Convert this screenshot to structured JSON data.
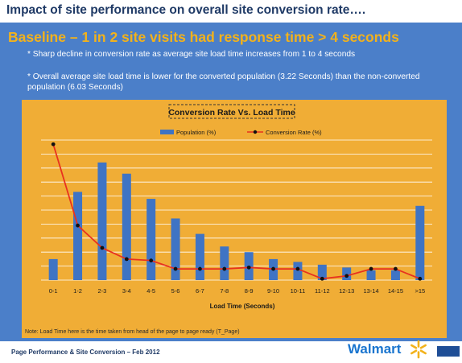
{
  "slide": {
    "title": "Impact of site performance on overall site conversion rate….",
    "headline": "Baseline – 1 in 2 site visits had response time > 4 seconds",
    "bullets": [
      "* Sharp decline in conversion rate as average site load time increases from 1 to 4 seconds",
      "* Overall average site load time is lower for the converted population (3.22 Seconds) than the non-converted population (6.03 Seconds)"
    ],
    "note": "Note: Load Time here is the time taken from head of the page to page ready (T_Page)",
    "footer": "Page Performance & Site Conversion – Feb 2012",
    "logo_text": "Walmart",
    "colors": {
      "panel": "#4b7fc9",
      "headline": "#f2b21c",
      "chart_bg": "#f0ad36",
      "bars": "#3f74c4",
      "line": "#e8311f",
      "logo": "#1a75cf",
      "spark": "#f2b21c"
    }
  },
  "chart_data": {
    "type": "bar",
    "title": "Conversion Rate Vs. Load Time",
    "xlabel": "Load Time (Seconds)",
    "ylabel": "",
    "categories": [
      "0-1",
      "1-2",
      "2-3",
      "3-4",
      "4-5",
      "5-6",
      "6-7",
      "7-8",
      "8-9",
      "9-10",
      "10-11",
      "11-12",
      "12-13",
      "13-14",
      "14-15",
      ">15"
    ],
    "series": [
      {
        "name": "Population (%)",
        "kind": "bar",
        "color": "#3f74c4",
        "values": [
          15,
          63,
          84,
          76,
          58,
          44,
          33,
          24,
          20,
          15,
          13,
          11,
          9,
          7,
          7,
          53
        ]
      },
      {
        "name": "Conversion Rate (%)",
        "kind": "line",
        "color": "#e8311f",
        "values": [
          97,
          39,
          23,
          15,
          14,
          8,
          8,
          8,
          9,
          8,
          8,
          1,
          3,
          8,
          8,
          1
        ]
      }
    ],
    "ylim": [
      0,
      100
    ],
    "grid": true,
    "legend_position": "top"
  }
}
